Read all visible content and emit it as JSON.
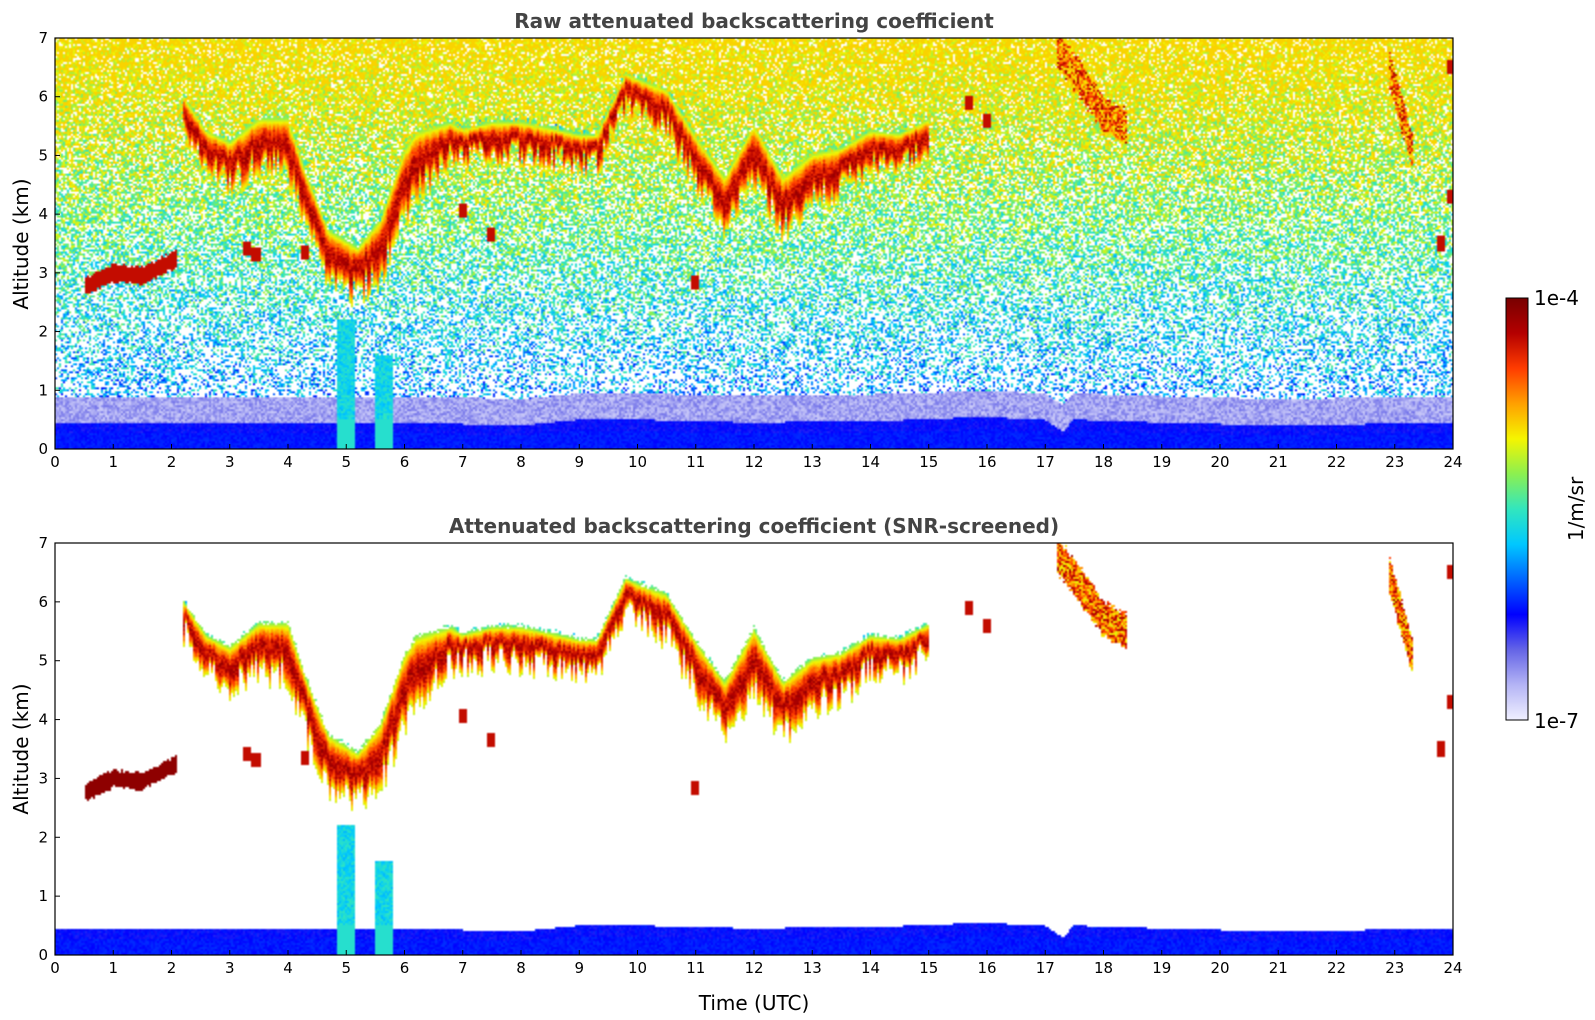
{
  "chart_data": [
    {
      "type": "heatmap",
      "title": "Raw attenuated backscattering coefficient",
      "xlabel": "",
      "ylabel": "Altitude (km)",
      "xlim": [
        0,
        24
      ],
      "ylim": [
        0,
        7
      ],
      "xticks": [
        "0",
        "1",
        "2",
        "3",
        "4",
        "5",
        "6",
        "7",
        "8",
        "9",
        "10",
        "11",
        "12",
        "13",
        "14",
        "15",
        "16",
        "17",
        "18",
        "19",
        "20",
        "21",
        "22",
        "23",
        "24"
      ],
      "yticks": [
        "0",
        "1",
        "2",
        "3",
        "4",
        "5",
        "6",
        "7"
      ],
      "screened": false,
      "noise_background": true
    },
    {
      "type": "heatmap",
      "title": "Attenuated backscattering coefficient (SNR-screened)",
      "xlabel": "Time (UTC)",
      "ylabel": "Altitude (km)",
      "xlim": [
        0,
        24
      ],
      "ylim": [
        0,
        7
      ],
      "xticks": [
        "0",
        "1",
        "2",
        "3",
        "4",
        "5",
        "6",
        "7",
        "8",
        "9",
        "10",
        "11",
        "12",
        "13",
        "14",
        "15",
        "16",
        "17",
        "18",
        "19",
        "20",
        "21",
        "22",
        "23",
        "24"
      ],
      "yticks": [
        "0",
        "1",
        "2",
        "3",
        "4",
        "5",
        "6",
        "7"
      ],
      "screened": true,
      "noise_background": false
    }
  ],
  "colorbar": {
    "label": "1/m/sr",
    "max_label": "1e-4",
    "min_label": "1e-7",
    "colormap": [
      "#f0f0ff",
      "#b4b4f5",
      "#6464e6",
      "#0000ff",
      "#0064ff",
      "#00c8ff",
      "#32e6be",
      "#8cf050",
      "#f5f500",
      "#ffa000",
      "#ff3c00",
      "#b40000",
      "#780000"
    ]
  },
  "features": {
    "boundary_layer": [
      [
        0,
        0.45
      ],
      [
        2,
        0.45
      ],
      [
        4,
        0.45
      ],
      [
        5,
        0.45
      ],
      [
        6,
        0.45
      ],
      [
        8,
        0.4
      ],
      [
        9,
        0.5
      ],
      [
        10,
        0.5
      ],
      [
        12,
        0.45
      ],
      [
        15,
        0.5
      ],
      [
        15.8,
        0.55
      ],
      [
        17,
        0.5
      ],
      [
        17.3,
        0.3
      ],
      [
        17.5,
        0.5
      ],
      [
        19,
        0.45
      ],
      [
        21,
        0.4
      ],
      [
        24,
        0.45
      ]
    ],
    "cloud_main": [
      [
        2.2,
        5.5
      ],
      [
        2.6,
        4.8
      ],
      [
        3,
        4.5
      ],
      [
        3.5,
        4.8
      ],
      [
        4,
        4.7
      ],
      [
        4.3,
        3.8
      ],
      [
        4.7,
        2.8
      ],
      [
        5.2,
        2.6
      ],
      [
        5.6,
        2.9
      ],
      [
        5.8,
        3.4
      ],
      [
        6.2,
        4.3
      ],
      [
        6.8,
        4.9
      ],
      [
        7.5,
        5.0
      ],
      [
        8.5,
        4.9
      ],
      [
        9.3,
        4.8
      ],
      [
        9.8,
        5.8
      ],
      [
        10.5,
        5.4
      ],
      [
        11,
        4.5
      ],
      [
        11.5,
        3.7
      ],
      [
        12,
        4.5
      ],
      [
        12.5,
        3.7
      ],
      [
        13,
        4.2
      ],
      [
        13.5,
        4.4
      ],
      [
        14,
        4.8
      ],
      [
        14.5,
        4.8
      ],
      [
        15,
        5.1
      ]
    ],
    "cloud_thickness": [
      [
        2.2,
        0.5
      ],
      [
        3,
        0.7
      ],
      [
        4,
        0.9
      ],
      [
        4.7,
        0.9
      ],
      [
        5.2,
        0.8
      ],
      [
        6,
        1.2
      ],
      [
        7,
        0.5
      ],
      [
        8,
        0.6
      ],
      [
        9,
        0.5
      ],
      [
        10,
        0.6
      ],
      [
        11,
        0.8
      ],
      [
        12,
        1.0
      ],
      [
        13,
        0.8
      ],
      [
        14,
        0.6
      ],
      [
        15,
        0.5
      ]
    ],
    "cloud_low": [
      [
        0.5,
        2.75
      ],
      [
        1,
        3.0
      ],
      [
        1.5,
        2.95
      ],
      [
        2.1,
        3.25
      ]
    ],
    "cloud_high": [
      [
        [
          17.2,
          6.8
        ],
        [
          17.6,
          6.3
        ],
        [
          18,
          5.7
        ],
        [
          18.4,
          5.5
        ]
      ],
      [
        [
          22.9,
          6.5
        ],
        [
          23.1,
          5.8
        ],
        [
          23.3,
          5.1
        ]
      ]
    ],
    "smoke_column": [
      [
        5.0,
        0,
        2.2
      ],
      [
        5.65,
        0,
        1.6
      ]
    ],
    "fragments": [
      [
        3.3,
        3.4
      ],
      [
        3.45,
        3.3
      ],
      [
        4.3,
        3.35
      ],
      [
        7.5,
        3.65
      ],
      [
        7.0,
        4.05
      ],
      [
        11.0,
        2.85
      ],
      [
        15.7,
        5.9
      ],
      [
        16.0,
        5.6
      ],
      [
        23.95,
        4.3
      ],
      [
        23.95,
        6.5
      ],
      [
        23.8,
        3.5
      ]
    ]
  }
}
